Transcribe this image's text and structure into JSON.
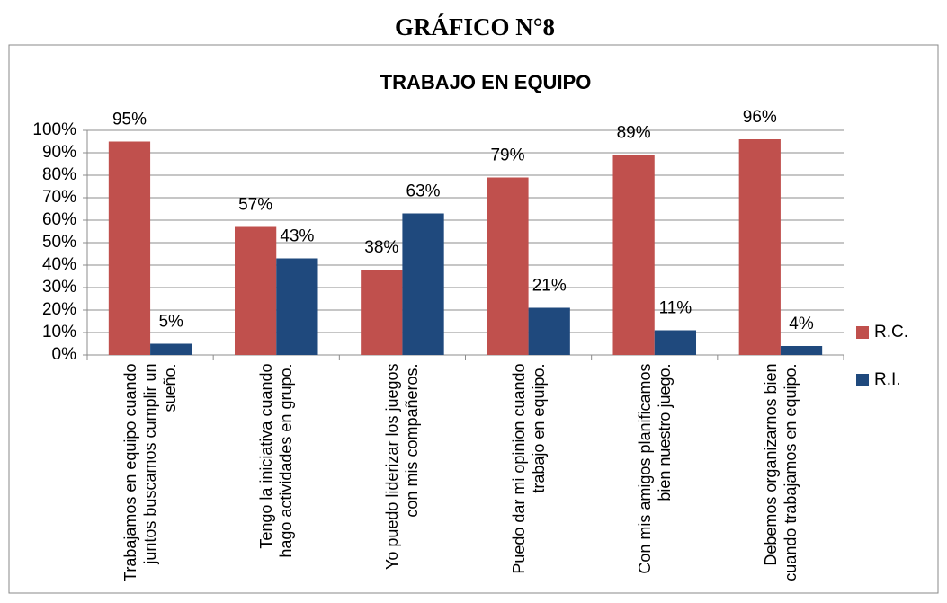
{
  "heading": "GRÁFICO N°8",
  "chart_data": {
    "type": "bar",
    "title": "TRABAJO EN EQUIPO",
    "categories": [
      "Trabajamos en equipo cuando juntos buscamos cumplir un sueño.",
      "Tengo la iniciativa cuando hago actividades en grupo.",
      "Yo puedo liderizar los juegos con mis compañeros.",
      "Puedo dar mi opinion cuando trabajo en equipo.",
      "Con mis amigos planificamos bien nuestro juego.",
      "Debemos organizarnos bien cuando trabajamos en equipo."
    ],
    "series": [
      {
        "name": "R.C.",
        "color": "#c0504d",
        "values": [
          95,
          57,
          38,
          79,
          89,
          96
        ],
        "value_labels": [
          "95%",
          "57%",
          "38%",
          "79%",
          "89%",
          "96%"
        ]
      },
      {
        "name": "R.I.",
        "color": "#1f497d",
        "values": [
          5,
          43,
          63,
          21,
          11,
          4
        ],
        "value_labels": [
          "5%",
          "43%",
          "63%",
          "21%",
          "11%",
          "4%"
        ]
      }
    ],
    "ylim": [
      0,
      100
    ],
    "yticks": [
      {
        "value": 0,
        "label": "0%"
      },
      {
        "value": 10,
        "label": "10%"
      },
      {
        "value": 20,
        "label": "20%"
      },
      {
        "value": 30,
        "label": "30%"
      },
      {
        "value": 40,
        "label": "40%"
      },
      {
        "value": 50,
        "label": "50%"
      },
      {
        "value": 60,
        "label": "60%"
      },
      {
        "value": 70,
        "label": "70%"
      },
      {
        "value": 80,
        "label": "80%"
      },
      {
        "value": 90,
        "label": "90%"
      },
      {
        "value": 100,
        "label": "100%"
      }
    ],
    "grid": true,
    "legend": "right"
  }
}
